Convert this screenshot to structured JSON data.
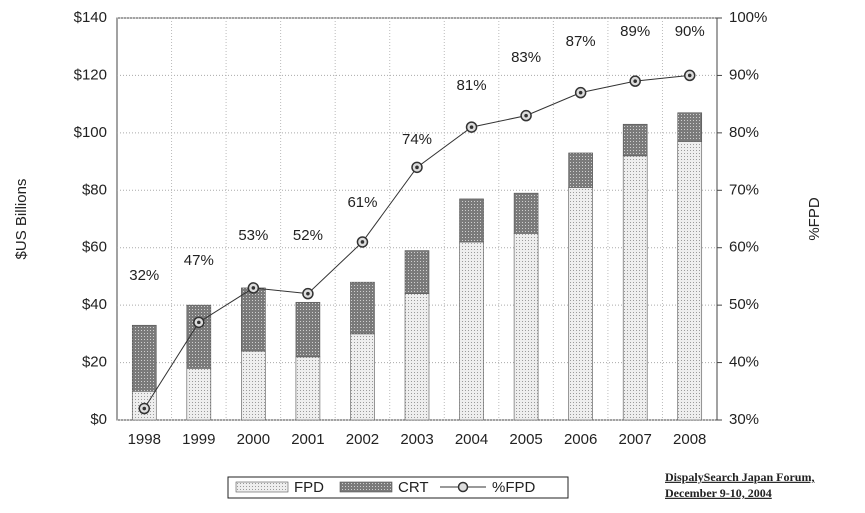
{
  "chart_data": {
    "type": "stacked_bar_line",
    "y_label": "$US Billions",
    "y2_label": "%FPD",
    "categories": [
      "1998",
      "1999",
      "2000",
      "2001",
      "2002",
      "2003",
      "2004",
      "2005",
      "2006",
      "2007",
      "2008"
    ],
    "series": [
      {
        "name": "FPD",
        "color": "#e4e4e4",
        "values": [
          10,
          18,
          24,
          22,
          30,
          44,
          62,
          65,
          81,
          92,
          97
        ]
      },
      {
        "name": "CRT",
        "color": "#8a8a8a",
        "values": [
          23,
          22,
          22,
          19,
          18,
          15,
          15,
          14,
          12,
          11,
          10
        ]
      },
      {
        "name": "%FPD",
        "color": "#333333",
        "axis": "y2",
        "values": [
          32,
          47,
          53,
          52,
          61,
          74,
          81,
          83,
          87,
          89,
          90
        ],
        "value_labels": [
          "32%",
          "47%",
          "53%",
          "52%",
          "61%",
          "74%",
          "81%",
          "83%",
          "87%",
          "89%",
          "90%"
        ]
      }
    ],
    "ylim": [
      0,
      140
    ],
    "yticks": [
      {
        "value": 0,
        "label": "$0"
      },
      {
        "value": 20,
        "label": "$20"
      },
      {
        "value": 40,
        "label": "$40"
      },
      {
        "value": 60,
        "label": "$60"
      },
      {
        "value": 80,
        "label": "$80"
      },
      {
        "value": 100,
        "label": "$100"
      },
      {
        "value": 120,
        "label": "$120"
      },
      {
        "value": 140,
        "label": "$140"
      }
    ],
    "y2lim": [
      30,
      100
    ],
    "y2ticks": [
      {
        "value": 30,
        "label": "30%"
      },
      {
        "value": 40,
        "label": "40%"
      },
      {
        "value": 50,
        "label": "50%"
      },
      {
        "value": 60,
        "label": "60%"
      },
      {
        "value": 70,
        "label": "70%"
      },
      {
        "value": 80,
        "label": "80%"
      },
      {
        "value": 90,
        "label": "90%"
      },
      {
        "value": 100,
        "label": "100%"
      }
    ],
    "grid": true,
    "legend": "bottom",
    "source": [
      "DispalySearch Japan Forum,",
      "December 9-10, 2004"
    ]
  }
}
